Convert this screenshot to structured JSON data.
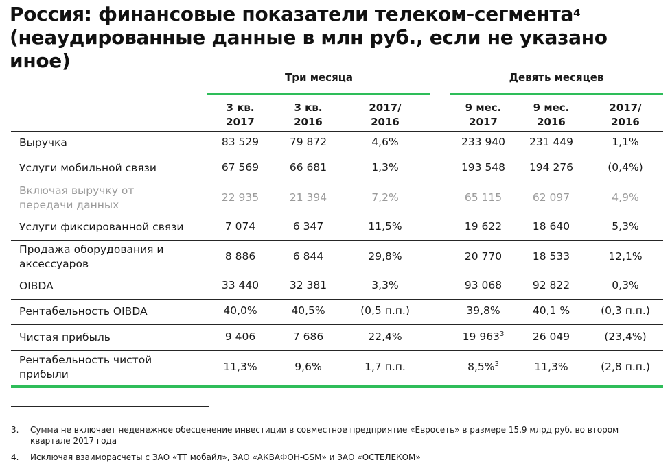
{
  "title": {
    "line1": "Россия: финансовые показатели телеком-сегмента",
    "line1_sup": "4",
    "line2": "(неаудированные данные в млн руб., если не указано иное)"
  },
  "groups": {
    "three_months": "Три месяца",
    "nine_months": "Девять месяцев"
  },
  "columns": [
    {
      "line1": "3 кв.",
      "line2": "2017"
    },
    {
      "line1": "3 кв.",
      "line2": "2016"
    },
    {
      "line1": "2017/",
      "line2": "2016"
    },
    {
      "line1": "9 мес.",
      "line2": "2017"
    },
    {
      "line1": "9 мес.",
      "line2": "2016"
    },
    {
      "line1": "2017/",
      "line2": "2016"
    }
  ],
  "rows": [
    {
      "label": "Выручка",
      "cells": [
        "83 529",
        "79 872",
        "4,6%",
        "233 940",
        "231 449",
        "1,1%"
      ]
    },
    {
      "label": "Услуги мобильной связи",
      "cells": [
        "67 569",
        "66 681",
        "1,3%",
        "193 548",
        "194 276",
        "(0,4%)"
      ]
    },
    {
      "label_line1": "Включая выручку от",
      "label_line2": "передачи данных",
      "cells": [
        "22 935",
        "21 394",
        "7,2%",
        "65 115",
        "62 097",
        "4,9%"
      ]
    },
    {
      "label": "Услуги фиксированной связи",
      "cells": [
        "7 074",
        "6 347",
        "11,5%",
        "19 622",
        "18 640",
        "5,3%"
      ]
    },
    {
      "label_line1": "Продажа оборудования и",
      "label_line2": "аксессуаров",
      "cells": [
        "8 886",
        "6 844",
        "29,8%",
        "20 770",
        "18 533",
        "12,1%"
      ]
    },
    {
      "label": "OIBDA",
      "cells": [
        "33 440",
        "32 381",
        "3,3%",
        "93 068",
        "92 822",
        "0,3%"
      ]
    },
    {
      "label": "Рентабельность OIBDA",
      "cells": [
        "40,0%",
        "40,5%",
        "(0,5 п.п.)",
        "39,8%",
        "40,1 %",
        "(0,3 п.п.)"
      ]
    },
    {
      "label": "Чистая прибыль",
      "cells": [
        "9 406",
        "7 686",
        "22,4%",
        "19 963",
        "26 049",
        "(23,4%)"
      ],
      "sup_col4": "3"
    },
    {
      "label_line1": "Рентабельность чистой",
      "label_line2": "прибыли",
      "cells": [
        "11,3%",
        "9,6%",
        "1,7 п.п.",
        "8,5%",
        "11,3%",
        "(2,8 п.п.)"
      ],
      "sup_col4": "3"
    }
  ],
  "footnotes": [
    {
      "num": "3.",
      "text": "Сумма не включает неденежное обесценение инвестиции в совместное предприятие «Евросеть» в размере 15,9 млрд руб. во втором квартале 2017 года"
    },
    {
      "num": "4.",
      "text": "Исключая взаиморасчеты с ЗАО «ТТ мобайл», ЗАО «АКВАФОН-GSM» и ЗАО «ОСТЕЛЕКОМ»"
    }
  ],
  "colors": {
    "accent_green": "#2ebd59",
    "muted_text": "#9a9a9a"
  }
}
